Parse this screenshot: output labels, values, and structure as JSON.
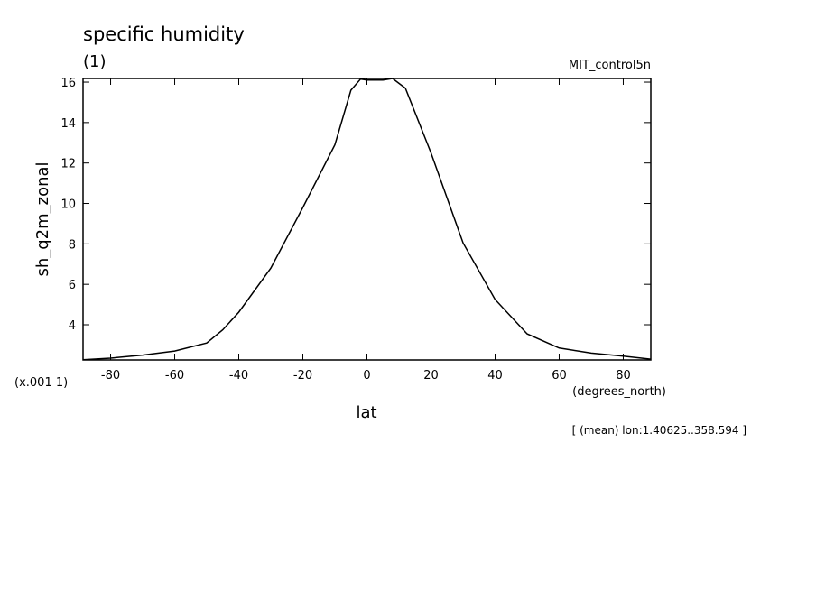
{
  "chart_data": {
    "type": "line",
    "title": "specific humidity",
    "subtitle": "(1)",
    "dataset": "MIT_control5n",
    "y_label": "sh_q2m_zonal",
    "y_units": "(x.001 1)",
    "x_units": "(degrees_north)",
    "x_label": "lat",
    "annotation": "[ (mean) lon:1.40625..358.594 ]",
    "x": [
      -88.6,
      -80,
      -70,
      -60,
      -50,
      -45,
      -40,
      -30,
      -20,
      -10,
      -5,
      -2,
      0,
      5,
      8,
      12,
      20,
      30,
      40,
      50,
      60,
      70,
      80,
      88.6
    ],
    "series": [
      {
        "color": "#000000",
        "values": [
          2.27,
          2.35,
          2.5,
          2.7,
          3.1,
          3.75,
          4.62,
          6.8,
          9.8,
          12.9,
          15.6,
          16.15,
          16.1,
          16.1,
          16.18,
          15.7,
          12.5,
          8.05,
          5.25,
          3.55,
          2.85,
          2.6,
          2.45,
          2.3
        ]
      }
    ],
    "xlim": [
      -88.6,
      88.6
    ],
    "ylim": [
      2.26,
      16.18
    ],
    "xticks": [
      -80,
      -60,
      -40,
      -20,
      0,
      20,
      40,
      60,
      80
    ],
    "yticks": [
      4,
      6,
      8,
      10,
      12,
      14,
      16
    ]
  }
}
